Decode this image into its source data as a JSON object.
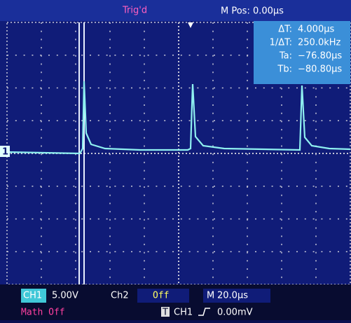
{
  "header": {
    "status": "Trig'd",
    "position": "M Pos: 0.00µs"
  },
  "cursor_panel": {
    "rows": [
      [
        "ΔT:",
        "4.000µs"
      ],
      [
        "1/ΔT:",
        "250.0kHz"
      ],
      [
        "Ta:",
        "−76.80µs"
      ],
      [
        "Tb:",
        "−80.80µs"
      ]
    ]
  },
  "channel_marker": "1",
  "footer": {
    "ch1_label": "CH1",
    "ch1_scale": "5.00V",
    "ch2_label": "Ch2",
    "ch2_state": "Off",
    "time_label": "M",
    "time_scale": "20.0µs",
    "math": "Math Off",
    "trigger_icon": "T",
    "trigger_source": "CH1",
    "trigger_level": "0.00mV"
  }
}
